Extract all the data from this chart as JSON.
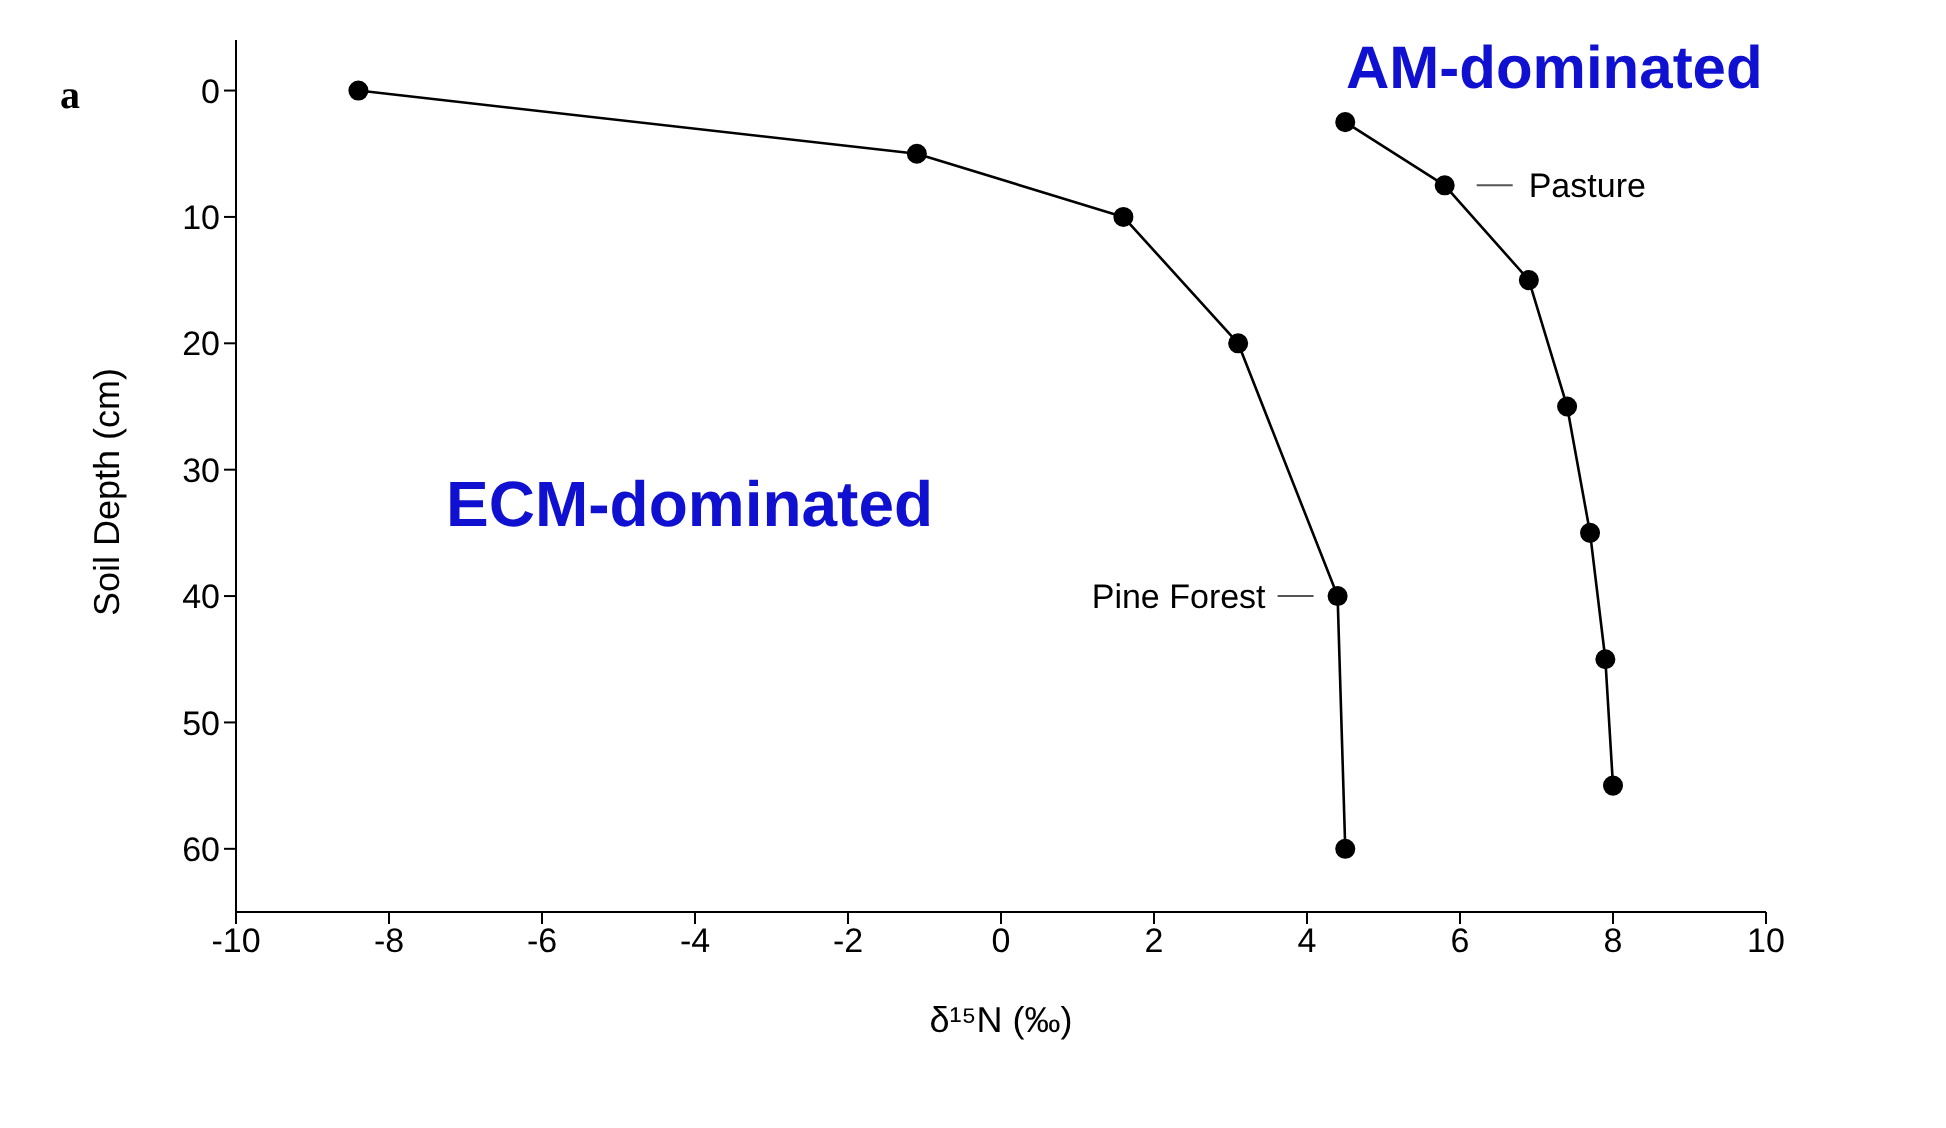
{
  "chart_data": {
    "type": "line",
    "xlabel": "δ¹⁵N (‰)",
    "ylabel": "Soil Depth (cm)",
    "xlim": [
      -10,
      10
    ],
    "xticks": [
      -10,
      -8,
      -6,
      -4,
      -2,
      0,
      2,
      4,
      6,
      8,
      10
    ],
    "ylim": [
      65,
      -4
    ],
    "yticks": [
      0,
      10,
      20,
      30,
      40,
      50,
      60
    ],
    "grid": false,
    "legend": false,
    "marker": "circle",
    "line_style": "solid",
    "series": [
      {
        "color": "#000000",
        "x": [
          -8.4,
          -1.1,
          1.6,
          3.1,
          4.4,
          4.5
        ],
        "values": [
          0,
          5,
          10,
          20,
          40,
          60
        ]
      },
      {
        "color": "#000000",
        "x": [
          4.5,
          5.8,
          6.9,
          7.4,
          7.7,
          7.9,
          8.0
        ],
        "values": [
          2.5,
          7.5,
          15,
          25,
          35,
          45,
          55
        ]
      }
    ],
    "annotations": [
      {
        "text": "Pine Forest",
        "x": 4.4,
        "y": 40
      },
      {
        "text": "Pasture",
        "x": 5.8,
        "y": 7.5
      },
      "a",
      "AM-dominated",
      "ECM-dominated"
    ]
  }
}
